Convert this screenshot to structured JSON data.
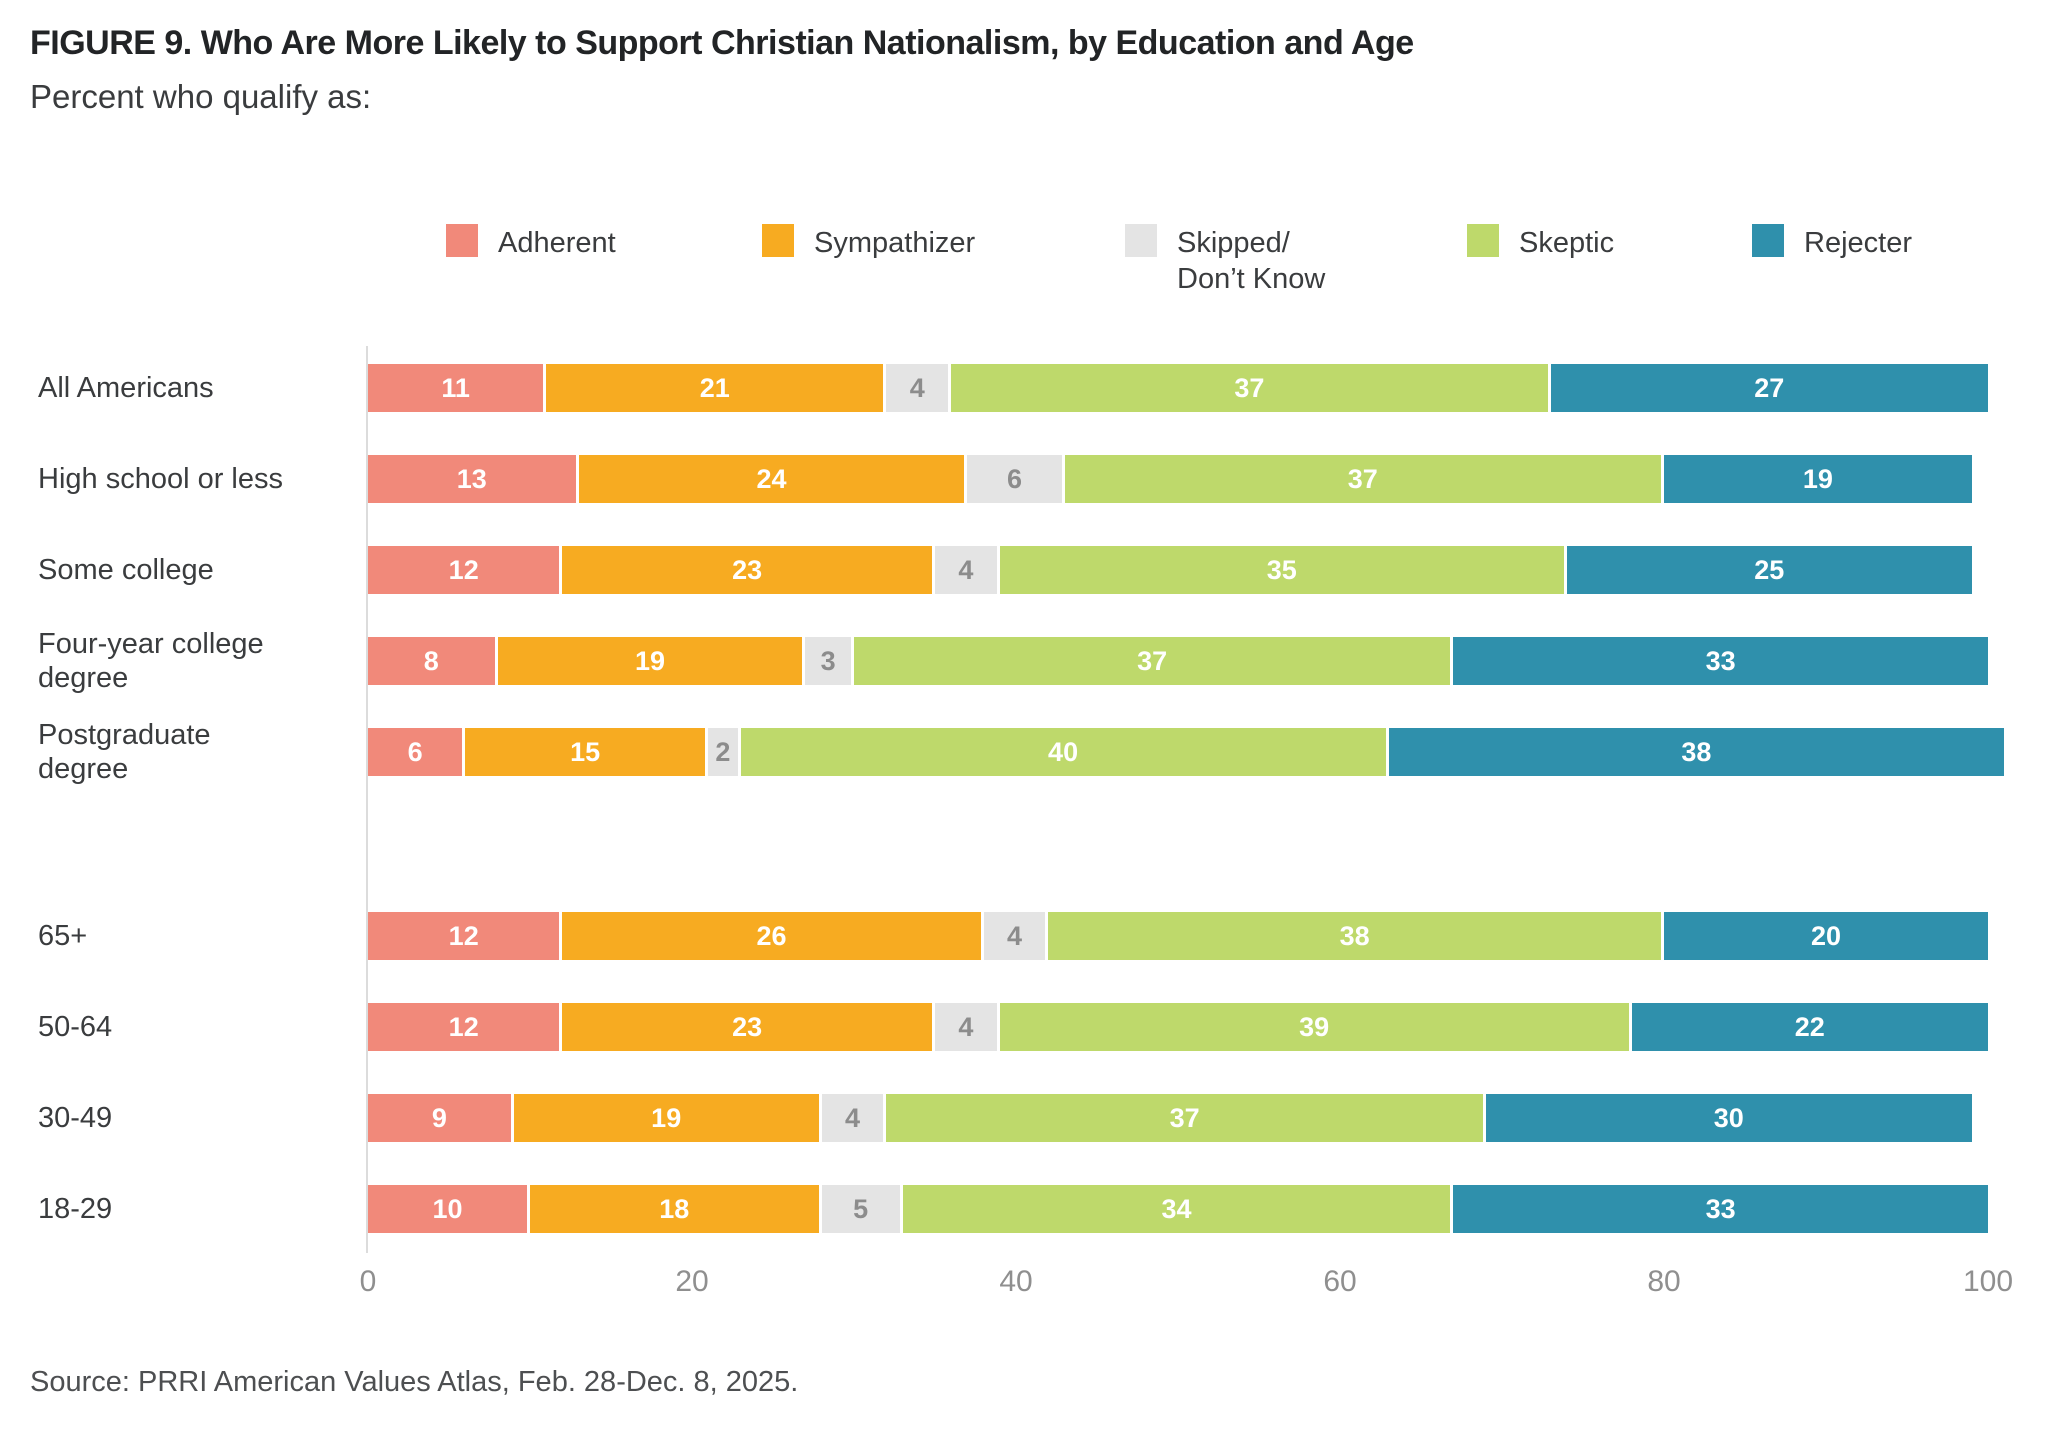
{
  "title": "FIGURE 9. Who Are More Likely to Support Christian Nationalism, by Education and Age",
  "subtitle": "Percent who qualify as:",
  "source": "Source: PRRI American Values Atlas, Feb. 28-Dec. 8, 2025.",
  "colors": {
    "adherent": "#F1897A",
    "sympathizer": "#F7AB21",
    "skipped": "#E4E4E4",
    "skeptic": "#BED96B",
    "rejecter": "#2F90AC",
    "gray_label": "#8C8C8C"
  },
  "legend": [
    {
      "label": "Adherent",
      "color": "#F1897A"
    },
    {
      "label": "Sympathizer",
      "color": "#F7AB21"
    },
    {
      "label": "Skipped/\nDon’t Know",
      "color": "#E4E4E4"
    },
    {
      "label": "Skeptic",
      "color": "#BED96B"
    },
    {
      "label": "Rejecter",
      "color": "#2F90AC"
    }
  ],
  "chart_data": {
    "type": "bar",
    "orientation": "horizontal-stacked",
    "xlim": [
      0,
      100
    ],
    "x_ticks": [
      0,
      20,
      40,
      60,
      80,
      100
    ],
    "grid": false,
    "legend_position": "top",
    "series_names": [
      "Adherent",
      "Sympathizer",
      "Skipped/Don't Know",
      "Skeptic",
      "Rejecter"
    ],
    "series_colors": [
      "#F1897A",
      "#F7AB21",
      "#E4E4E4",
      "#BED96B",
      "#2F90AC"
    ],
    "rows": [
      {
        "label": "All Americans",
        "values": [
          11,
          21,
          4,
          37,
          27
        ],
        "group": "education"
      },
      {
        "label": "High school or less",
        "values": [
          13,
          24,
          6,
          37,
          19
        ],
        "group": "education"
      },
      {
        "label": "Some college",
        "values": [
          12,
          23,
          4,
          35,
          25
        ],
        "group": "education"
      },
      {
        "label": "Four-year college\ndegree",
        "values": [
          8,
          19,
          3,
          37,
          33
        ],
        "group": "education"
      },
      {
        "label": "Postgraduate\ndegree",
        "values": [
          6,
          15,
          2,
          40,
          38
        ],
        "group": "education"
      },
      {
        "label": "65+",
        "values": [
          12,
          26,
          4,
          38,
          20
        ],
        "group": "age",
        "group_start": true
      },
      {
        "label": "50-64",
        "values": [
          12,
          23,
          4,
          39,
          22
        ],
        "group": "age"
      },
      {
        "label": "30-49",
        "values": [
          9,
          19,
          4,
          37,
          30
        ],
        "group": "age"
      },
      {
        "label": "18-29",
        "values": [
          10,
          18,
          5,
          34,
          33
        ],
        "group": "age"
      }
    ]
  }
}
